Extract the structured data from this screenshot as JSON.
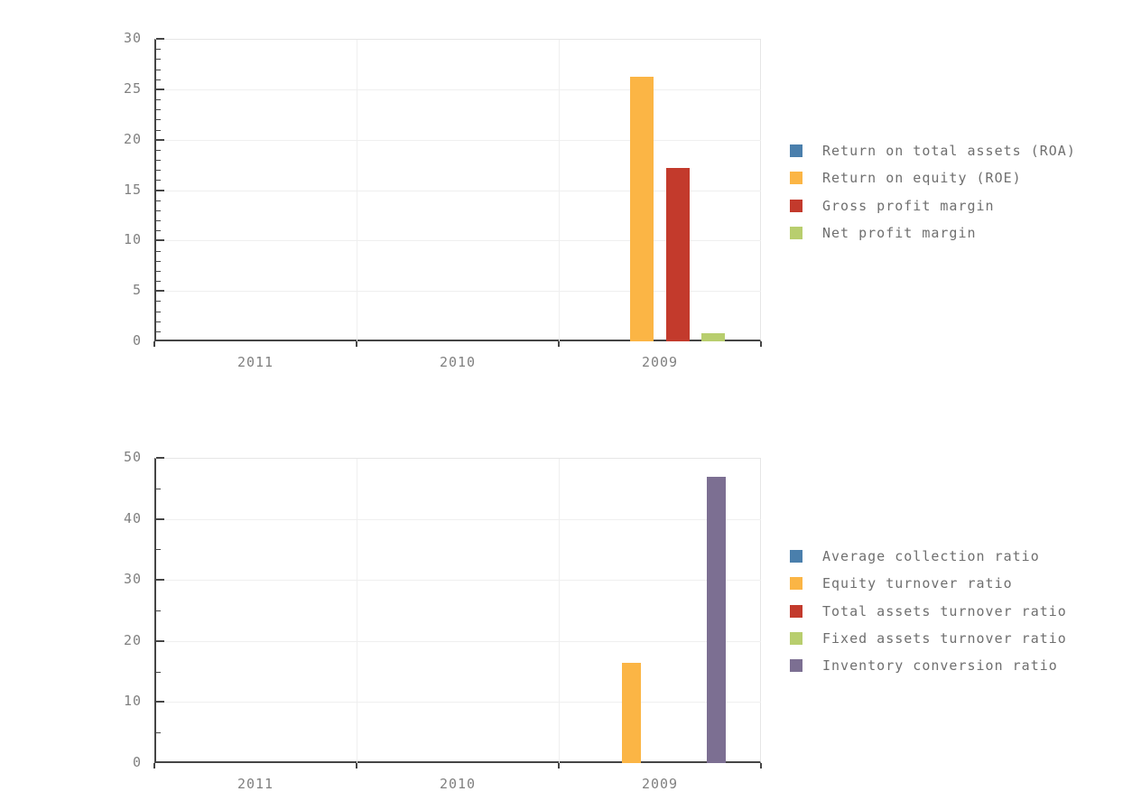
{
  "style": {
    "background": "#ffffff",
    "axis_color": "#454545",
    "grid_color": "#efefef",
    "frame_color": "#e6e6e6",
    "tick_label_color": "#808080",
    "legend_text_color": "#6f6f6f"
  },
  "chart_data": [
    {
      "type": "bar",
      "categories": [
        "2011",
        "2010",
        "2009"
      ],
      "series": [
        {
          "name": "Return on total assets (ROA)",
          "color": "#4A7FAC",
          "values": [
            0,
            0,
            0
          ]
        },
        {
          "name": "Return on equity (ROE)",
          "color": "#FBB545",
          "values": [
            0,
            0,
            26.2
          ]
        },
        {
          "name": "Gross profit margin",
          "color": "#C33A2C",
          "values": [
            0,
            0,
            17.2
          ]
        },
        {
          "name": "Net profit margin",
          "color": "#B8CE6E",
          "values": [
            0,
            0,
            0.85
          ]
        }
      ],
      "ylim": [
        0,
        30
      ],
      "ytick_step": 5,
      "yminor_step": 1,
      "grid": true,
      "legend_position": "right"
    },
    {
      "type": "bar",
      "categories": [
        "2011",
        "2010",
        "2009"
      ],
      "series": [
        {
          "name": "Average collection ratio",
          "color": "#4A7FAC",
          "values": [
            0,
            0,
            0
          ]
        },
        {
          "name": "Equity turnover ratio",
          "color": "#FBB545",
          "values": [
            0,
            0,
            16.4
          ]
        },
        {
          "name": "Total assets turnover ratio",
          "color": "#C33A2C",
          "values": [
            0,
            0,
            0
          ]
        },
        {
          "name": "Fixed assets turnover ratio",
          "color": "#B8CE6E",
          "values": [
            0,
            0,
            0
          ]
        },
        {
          "name": "Inventory conversion ratio",
          "color": "#7C6F92",
          "values": [
            0,
            0,
            46.9
          ]
        }
      ],
      "ylim": [
        0,
        50
      ],
      "ytick_step": 10,
      "yminor_step": 5,
      "grid": true,
      "legend_position": "right"
    }
  ]
}
